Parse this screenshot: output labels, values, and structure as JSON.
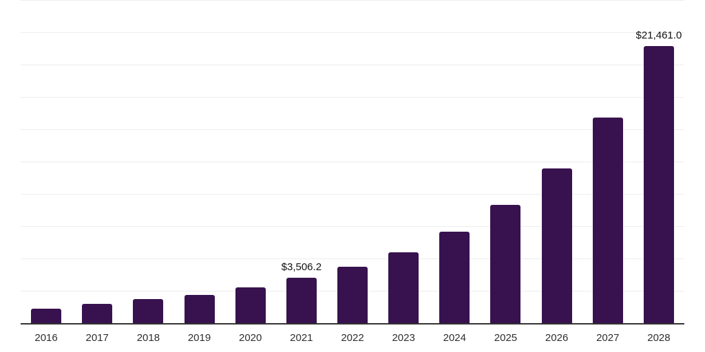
{
  "chart": {
    "background_color": "#ffffff",
    "bar_color": "#38124E",
    "axis_color": "#333333",
    "gridline_color": "#ededed",
    "tick_label_color": "#2e2e2e",
    "data_label_color": "#111111"
  },
  "chart_data": {
    "type": "bar",
    "title": "",
    "xlabel": "",
    "ylabel": "",
    "categories": [
      "2016",
      "2017",
      "2018",
      "2019",
      "2020",
      "2021",
      "2022",
      "2023",
      "2024",
      "2025",
      "2026",
      "2027",
      "2028"
    ],
    "values": [
      1120,
      1490,
      1860,
      2200,
      2780,
      3506.2,
      4360,
      5490,
      7060,
      9170,
      11950,
      15900,
      21461.0
    ],
    "data_labels": [
      "",
      "",
      "",
      "",
      "",
      "$3,506.2",
      "",
      "",
      "",
      "",
      "",
      "",
      "$21,461.0"
    ],
    "ylim": [
      0,
      25000
    ],
    "gridline_step": 2500,
    "grid": true,
    "legend": false,
    "y_axis_ticks_visible": false
  }
}
